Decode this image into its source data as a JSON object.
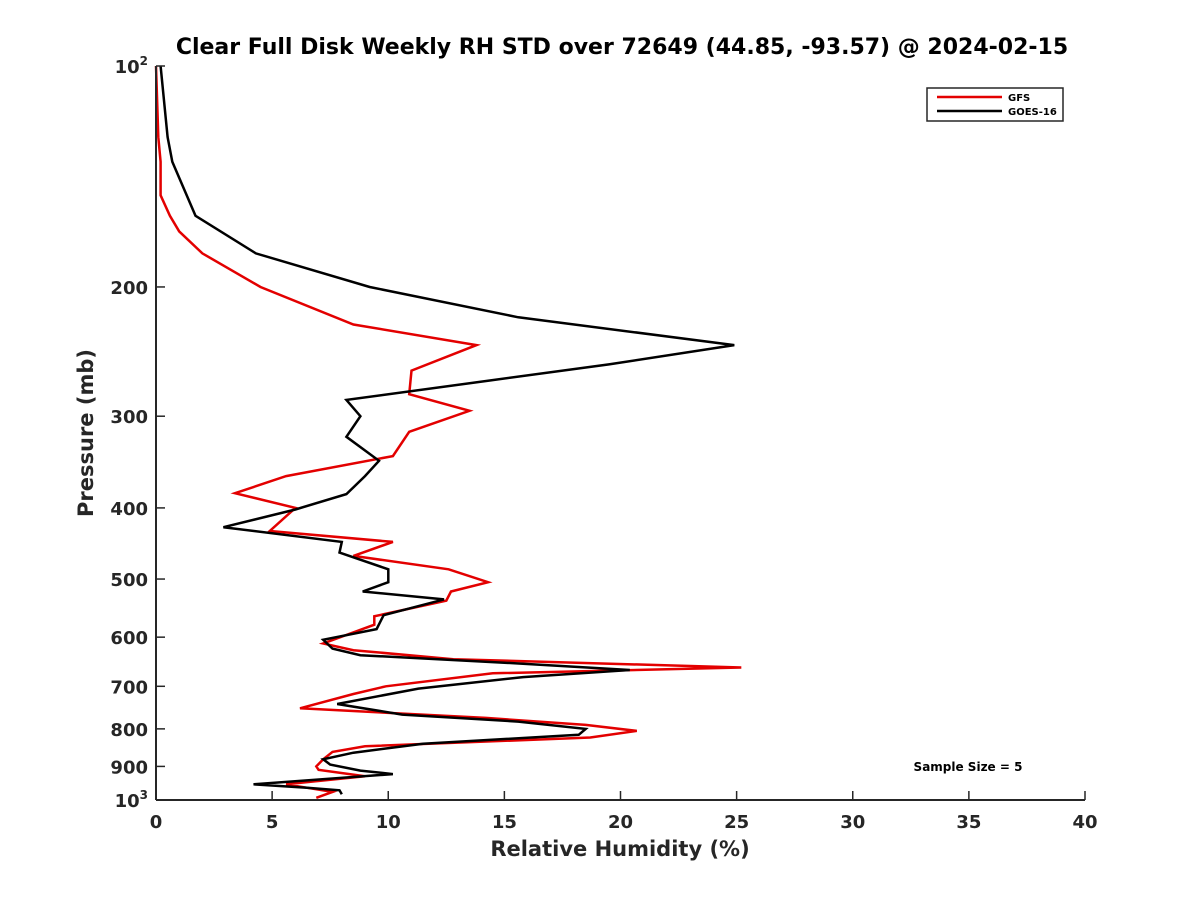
{
  "chart_data": {
    "type": "line",
    "title": "Clear Full Disk Weekly RH STD over 72649 (44.85, -93.57) @ 2024-02-15",
    "xlabel": "Relative Humidity (%)",
    "ylabel": "Pressure (mb)",
    "xlim": [
      0,
      40
    ],
    "ylim": [
      100,
      1000
    ],
    "y_scale": "log",
    "y_reversed": true,
    "grid": false,
    "legend_position": "top-right",
    "x_ticks": [
      {
        "value": 0,
        "label": "0"
      },
      {
        "value": 5,
        "label": "5"
      },
      {
        "value": 10,
        "label": "10"
      },
      {
        "value": 15,
        "label": "15"
      },
      {
        "value": 20,
        "label": "20"
      },
      {
        "value": 25,
        "label": "25"
      },
      {
        "value": 30,
        "label": "30"
      },
      {
        "value": 35,
        "label": "35"
      },
      {
        "value": 40,
        "label": "40"
      }
    ],
    "y_ticks": [
      {
        "value": 100,
        "base": "10",
        "exp": "2"
      },
      {
        "value": 200,
        "label": "200"
      },
      {
        "value": 300,
        "label": "300"
      },
      {
        "value": 400,
        "label": "400"
      },
      {
        "value": 500,
        "label": "500"
      },
      {
        "value": 600,
        "label": "600"
      },
      {
        "value": 700,
        "label": "700"
      },
      {
        "value": 800,
        "label": "800"
      },
      {
        "value": 900,
        "label": "900"
      },
      {
        "value": 1000,
        "base": "10",
        "exp": "3"
      }
    ],
    "annotation": "Sample Size = 5",
    "series": [
      {
        "name": "GFS",
        "color": "#e30000",
        "points": [
          [
            0.0,
            100
          ],
          [
            0.1,
            125
          ],
          [
            0.2,
            135
          ],
          [
            0.2,
            150
          ],
          [
            0.6,
            160
          ],
          [
            1.0,
            168
          ],
          [
            2.0,
            180
          ],
          [
            4.5,
            200
          ],
          [
            8.5,
            225
          ],
          [
            13.8,
            240
          ],
          [
            11.0,
            260
          ],
          [
            10.9,
            280
          ],
          [
            13.5,
            295
          ],
          [
            10.9,
            315
          ],
          [
            10.2,
            340
          ],
          [
            5.6,
            362
          ],
          [
            3.4,
            382
          ],
          [
            6.0,
            400
          ],
          [
            4.9,
            430
          ],
          [
            10.2,
            445
          ],
          [
            8.5,
            465
          ],
          [
            12.6,
            485
          ],
          [
            14.3,
            505
          ],
          [
            12.7,
            520
          ],
          [
            12.5,
            535
          ],
          [
            9.4,
            562
          ],
          [
            9.4,
            577
          ],
          [
            7.2,
            612
          ],
          [
            8.5,
            625
          ],
          [
            12.8,
            643
          ],
          [
            25.2,
            660
          ],
          [
            14.5,
            672
          ],
          [
            9.9,
            700
          ],
          [
            8.5,
            717
          ],
          [
            6.2,
            750
          ],
          [
            14.2,
            773
          ],
          [
            18.5,
            790
          ],
          [
            20.7,
            805
          ],
          [
            18.7,
            822
          ],
          [
            9.0,
            845
          ],
          [
            7.6,
            860
          ],
          [
            7.2,
            880
          ],
          [
            6.9,
            900
          ],
          [
            7.0,
            910
          ],
          [
            9.0,
            928
          ],
          [
            5.6,
            952
          ],
          [
            7.6,
            975
          ],
          [
            6.9,
            993
          ]
        ]
      },
      {
        "name": "GOES-16",
        "color": "#000000",
        "points": [
          [
            0.2,
            100
          ],
          [
            0.5,
            125
          ],
          [
            0.7,
            135
          ],
          [
            1.7,
            160
          ],
          [
            4.3,
            180
          ],
          [
            9.2,
            200
          ],
          [
            15.6,
            220
          ],
          [
            24.9,
            240
          ],
          [
            19.5,
            255
          ],
          [
            8.2,
            285
          ],
          [
            8.8,
            300
          ],
          [
            8.2,
            320
          ],
          [
            9.6,
            345
          ],
          [
            9.0,
            362
          ],
          [
            8.2,
            383
          ],
          [
            6.0,
            402
          ],
          [
            2.9,
            425
          ],
          [
            8.0,
            445
          ],
          [
            7.9,
            460
          ],
          [
            10.0,
            485
          ],
          [
            10.0,
            505
          ],
          [
            8.9,
            520
          ],
          [
            12.4,
            533
          ],
          [
            9.8,
            560
          ],
          [
            9.5,
            585
          ],
          [
            7.2,
            605
          ],
          [
            7.6,
            622
          ],
          [
            8.8,
            635
          ],
          [
            15.0,
            650
          ],
          [
            20.4,
            665
          ],
          [
            15.8,
            680
          ],
          [
            11.3,
            705
          ],
          [
            7.8,
            740
          ],
          [
            10.6,
            765
          ],
          [
            15.6,
            782
          ],
          [
            18.5,
            800
          ],
          [
            18.2,
            815
          ],
          [
            11.5,
            838
          ],
          [
            8.5,
            862
          ],
          [
            7.2,
            880
          ],
          [
            7.5,
            895
          ],
          [
            8.8,
            912
          ],
          [
            10.2,
            922
          ],
          [
            4.2,
            952
          ],
          [
            6.5,
            962
          ],
          [
            7.9,
            970
          ],
          [
            8.0,
            982
          ]
        ]
      }
    ]
  }
}
